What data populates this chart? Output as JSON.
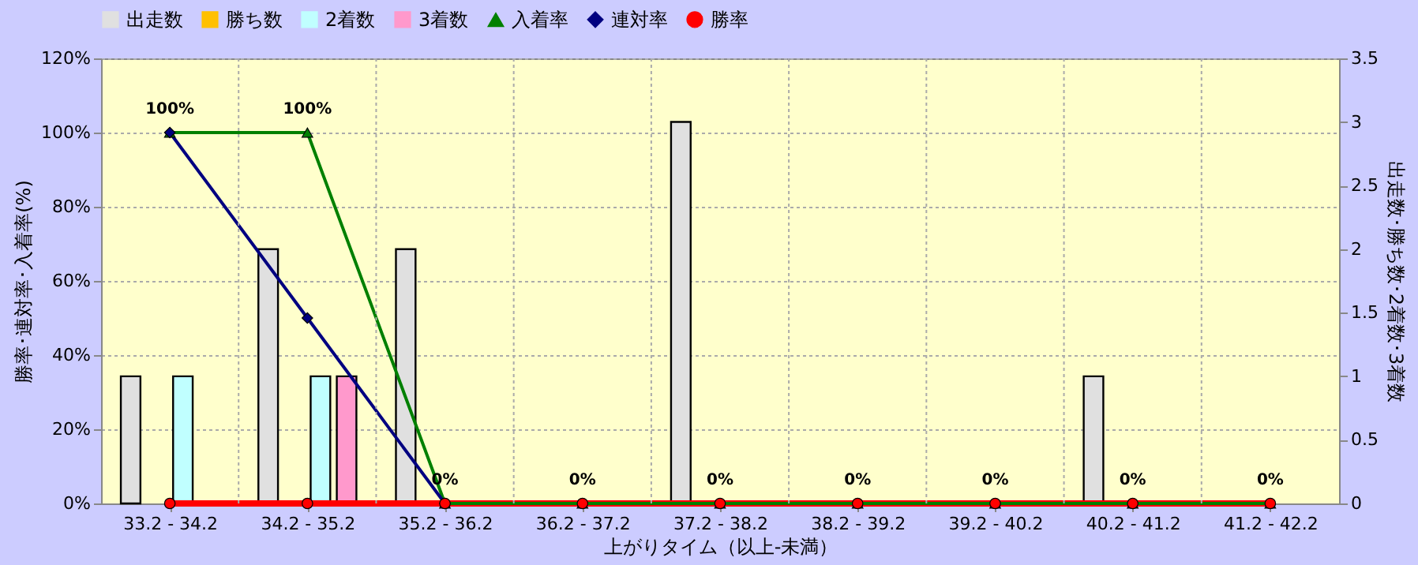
{
  "chart_data": {
    "type": "bar",
    "xlabel": "上がりタイム（以上-未満）",
    "ylabel": "勝率･連対率･入着率(%)",
    "y2label": "出走数･勝ち数･2着数･3着数",
    "categories": [
      "33.2 - 34.2",
      "34.2 - 35.2",
      "35.2 - 36.2",
      "36.2 - 37.2",
      "37.2 - 38.2",
      "38.2 - 39.2",
      "39.2 - 40.2",
      "40.2 - 41.2",
      "41.2 - 42.2"
    ],
    "series": [
      {
        "name": "出走数",
        "type": "bar",
        "axis": "y2",
        "color": "#e0e0e0",
        "values": [
          1,
          2,
          2,
          0,
          3,
          0,
          0,
          1,
          0
        ]
      },
      {
        "name": "勝ち数",
        "type": "bar",
        "axis": "y2",
        "color": "#ffc000",
        "values": [
          0,
          0,
          0,
          0,
          0,
          0,
          0,
          0,
          0
        ]
      },
      {
        "name": "2着数",
        "type": "bar",
        "axis": "y2",
        "color": "#c0ffff",
        "values": [
          1,
          1,
          0,
          0,
          0,
          0,
          0,
          0,
          0
        ]
      },
      {
        "name": "3着数",
        "type": "bar",
        "axis": "y2",
        "color": "#ff99cc",
        "values": [
          0,
          1,
          0,
          0,
          0,
          0,
          0,
          0,
          0
        ]
      },
      {
        "name": "入着率",
        "type": "line",
        "marker": "triangle",
        "color": "#008000",
        "values": [
          100,
          100,
          0,
          0,
          0,
          0,
          0,
          0,
          0
        ],
        "value_labels": [
          "100%",
          "100%",
          "0%",
          "0%",
          "0%",
          "0%",
          "0%",
          "0%",
          "0%"
        ]
      },
      {
        "name": "連対率",
        "type": "line",
        "marker": "diamond",
        "color": "#000080",
        "values": [
          100,
          50,
          0,
          null,
          null,
          null,
          null,
          null,
          null
        ]
      },
      {
        "name": "勝率",
        "type": "line",
        "marker": "circle",
        "color": "#ff0000",
        "values": [
          0,
          0,
          0,
          0,
          0,
          0,
          0,
          0,
          0
        ]
      }
    ],
    "ylim": [
      0,
      120
    ],
    "yticks": [
      {
        "value": 0,
        "label": "0%"
      },
      {
        "value": 20,
        "label": "20%"
      },
      {
        "value": 40,
        "label": "40%"
      },
      {
        "value": 60,
        "label": "60%"
      },
      {
        "value": 80,
        "label": "80%"
      },
      {
        "value": 100,
        "label": "100%"
      },
      {
        "value": 120,
        "label": "120%"
      }
    ],
    "y2lim": [
      0,
      3.5
    ],
    "y2ticks": [
      0,
      0.5,
      1,
      1.5,
      2,
      2.5,
      3,
      3.5
    ],
    "grid": true,
    "legend": "top"
  }
}
